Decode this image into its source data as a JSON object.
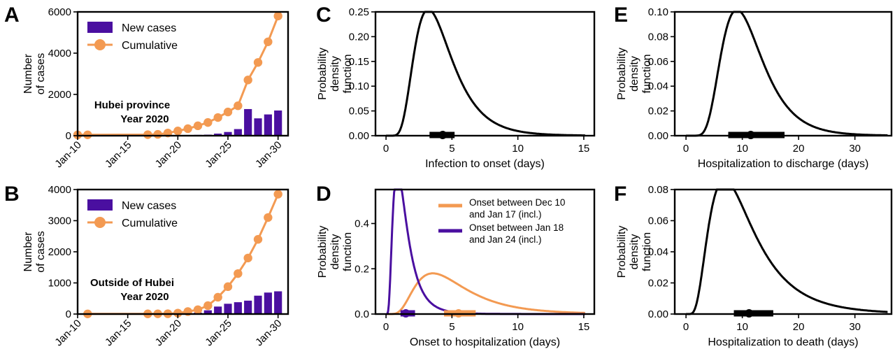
{
  "colors": {
    "cumulative": "#f39a52",
    "new_cases": "#4a0fa0",
    "curve": "#000000",
    "early": "#f39a52",
    "late": "#4a0fa0"
  },
  "chart_data": [
    {
      "panel": "A",
      "type": "bar",
      "ylabel": "Number\nof cases",
      "ylim": [
        0,
        6000
      ],
      "yticks": [
        0,
        2000,
        4000,
        6000
      ],
      "xlim": [
        10,
        31
      ],
      "xticks": [
        10,
        15,
        20,
        25,
        30
      ],
      "xtick_labels": [
        "Jan-10",
        "Jan-15",
        "Jan-20",
        "Jan-25",
        "Jan-30"
      ],
      "annotation": [
        "Hubei province",
        "Year 2020"
      ],
      "legend": [
        "New cases",
        "Cumulative"
      ],
      "legend_position": "top-left",
      "series": [
        {
          "name": "New cases",
          "kind": "bar",
          "x": [
            17,
            18,
            19,
            20,
            21,
            22,
            23,
            24,
            25,
            26,
            27,
            28,
            29,
            30
          ],
          "values": [
            10,
            15,
            20,
            25,
            35,
            40,
            50,
            100,
            180,
            320,
            1290,
            840,
            1030,
            1220
          ]
        },
        {
          "name": "Cumulative",
          "kind": "line",
          "x": [
            10,
            11,
            17,
            18,
            19,
            20,
            21,
            22,
            23,
            24,
            25,
            26,
            27,
            28,
            29,
            30
          ],
          "values": [
            40,
            41,
            50,
            65,
            130,
            230,
            340,
            480,
            640,
            880,
            1150,
            1450,
            2700,
            3550,
            4550,
            5800
          ]
        }
      ]
    },
    {
      "panel": "B",
      "type": "bar",
      "ylabel": "Number\nof cases",
      "ylim": [
        0,
        4000
      ],
      "yticks": [
        0,
        1000,
        2000,
        3000,
        4000
      ],
      "xlim": [
        10,
        31
      ],
      "xticks": [
        10,
        15,
        20,
        25,
        30
      ],
      "xtick_labels": [
        "Jan-10",
        "Jan-15",
        "Jan-20",
        "Jan-25",
        "Jan-30"
      ],
      "annotation": [
        "Outside of Hubei",
        "Year 2020"
      ],
      "legend": [
        "New cases",
        "Cumulative"
      ],
      "legend_position": "top-left",
      "series": [
        {
          "name": "New cases",
          "kind": "bar",
          "x": [
            19,
            20,
            21,
            22,
            23,
            24,
            25,
            26,
            27,
            28,
            29,
            30
          ],
          "values": [
            3,
            8,
            20,
            45,
            120,
            240,
            330,
            380,
            430,
            590,
            690,
            730
          ]
        },
        {
          "name": "Cumulative",
          "kind": "line",
          "x": [
            11,
            17,
            18,
            19,
            20,
            21,
            22,
            23,
            24,
            25,
            26,
            27,
            28,
            29,
            30
          ],
          "values": [
            5,
            6,
            8,
            10,
            30,
            80,
            140,
            270,
            540,
            880,
            1300,
            1800,
            2400,
            3100,
            3850
          ]
        }
      ]
    },
    {
      "panel": "C",
      "type": "line",
      "ylabel": "Probability\ndensity\nfunction",
      "xlabel": "Infection to onset (days)",
      "xlim": [
        -0.8,
        15.8
      ],
      "ylim": [
        0,
        0.25
      ],
      "xticks": [
        0,
        5,
        10,
        15
      ],
      "yticks": [
        0.0,
        0.05,
        0.1,
        0.15,
        0.2,
        0.25
      ],
      "ytick_labels": [
        "0.00",
        "0.05",
        "0.10",
        "0.15",
        "0.20",
        "0.25"
      ],
      "dist": {
        "family": "lognormal",
        "mean": 4.3,
        "sd": 2.0
      },
      "interval": {
        "lo": 3.3,
        "hi": 5.2,
        "point": 4.3
      },
      "series": [
        {
          "kind": "line",
          "color": "#000000"
        }
      ]
    },
    {
      "panel": "D",
      "type": "line",
      "ylabel": "Probability\ndensity\nfunction",
      "xlabel": "Onset to hospitalization (days)",
      "xlim": [
        -0.8,
        15.8
      ],
      "ylim": [
        0,
        0.55
      ],
      "xticks": [
        0,
        5,
        10,
        15
      ],
      "yticks": [
        0.0,
        0.2,
        0.4
      ],
      "ytick_labels": [
        "0.0",
        "0.2",
        "0.4"
      ],
      "legend_position": "top-right",
      "series": [
        {
          "name": "Onset between Dec 10\nand Jan 17 (incl.)",
          "kind": "line",
          "color": "#f39a52",
          "dist": {
            "family": "lognormal",
            "mean": 5.5,
            "sd": 3.2
          },
          "interval": {
            "lo": 4.4,
            "hi": 6.8,
            "point": 5.5
          }
        },
        {
          "name": "Onset between Jan 18\nand Jan 24 (incl.)",
          "kind": "line",
          "color": "#4a0fa0",
          "dist": {
            "family": "lognormal",
            "mean": 1.5,
            "sd": 1.0
          },
          "interval": {
            "lo": 1.1,
            "hi": 2.2,
            "point": 1.5
          }
        }
      ]
    },
    {
      "panel": "E",
      "type": "line",
      "ylabel": "Probability\ndensity\nfunction",
      "xlabel": "Hospitalization to discharge (days)",
      "xlim": [
        -2,
        36.5
      ],
      "ylim": [
        0,
        0.1
      ],
      "xticks": [
        0,
        10,
        20,
        30
      ],
      "yticks": [
        0.0,
        0.02,
        0.04,
        0.06,
        0.08,
        0.1
      ],
      "ytick_labels": [
        "0.00",
        "0.02",
        "0.04",
        "0.06",
        "0.08",
        "0.10"
      ],
      "dist": {
        "family": "lognormal",
        "mean": 11.5,
        "sd": 4.8
      },
      "interval": {
        "lo": 7.5,
        "hi": 17.5,
        "point": 11.5
      },
      "series": [
        {
          "kind": "line",
          "color": "#000000"
        }
      ]
    },
    {
      "panel": "F",
      "type": "line",
      "ylabel": "Probability\ndensity\nfunction",
      "xlabel": "Hospitalization to death (days)",
      "xlim": [
        -2,
        36.5
      ],
      "ylim": [
        0,
        0.08
      ],
      "xticks": [
        0,
        10,
        20,
        30
      ],
      "yticks": [
        0.0,
        0.02,
        0.04,
        0.06,
        0.08
      ],
      "ytick_labels": [
        "0.00",
        "0.02",
        "0.04",
        "0.06",
        "0.08"
      ],
      "dist": {
        "family": "lognormal",
        "mean": 11.2,
        "sd": 7.0
      },
      "interval": {
        "lo": 8.5,
        "hi": 15.5,
        "point": 11.2
      },
      "series": [
        {
          "kind": "line",
          "color": "#000000"
        }
      ]
    }
  ]
}
